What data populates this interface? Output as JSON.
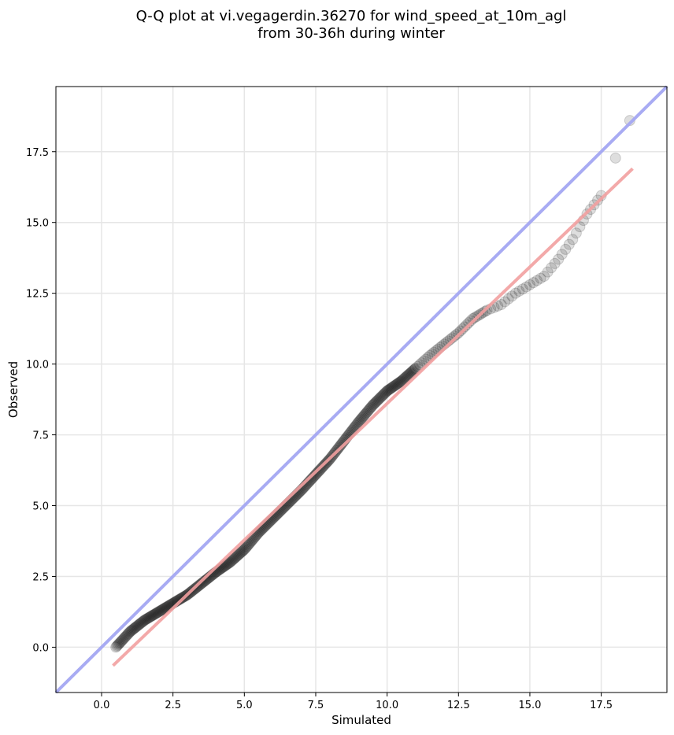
{
  "chart_data": {
    "type": "scatter",
    "title_line1": "Q-Q plot at vi.vegagerdin.36270 for wind_speed_at_10m_agl",
    "title_line2": "from 30-36h during winter",
    "xlabel": "Simulated",
    "ylabel": "Observed",
    "xlim": [
      -1.6,
      19.8
    ],
    "ylim": [
      -1.6,
      19.8
    ],
    "xticks": [
      0.0,
      2.5,
      5.0,
      7.5,
      10.0,
      12.5,
      15.0,
      17.5
    ],
    "xtick_labels": [
      "0.0",
      "2.5",
      "5.0",
      "7.5",
      "10.0",
      "12.5",
      "15.0",
      "17.5"
    ],
    "yticks": [
      0.0,
      2.5,
      5.0,
      7.5,
      10.0,
      12.5,
      15.0,
      17.5
    ],
    "ytick_labels": [
      "0.0",
      "2.5",
      "5.0",
      "7.5",
      "10.0",
      "12.5",
      "15.0",
      "17.5"
    ],
    "grid": true,
    "identity_line": {
      "from": [
        -1.6,
        -1.6
      ],
      "to": [
        19.8,
        19.8
      ],
      "color": "#a3a6f2"
    },
    "fit_line": {
      "from": [
        0.4,
        -0.65
      ],
      "to": [
        18.6,
        16.9
      ],
      "color": "#f2a0a0"
    },
    "points_color": "#000000",
    "qq_curve": [
      [
        0.5,
        0.0
      ],
      [
        1.0,
        0.55
      ],
      [
        1.5,
        0.95
      ],
      [
        2.0,
        1.25
      ],
      [
        2.5,
        1.55
      ],
      [
        3.0,
        1.85
      ],
      [
        3.5,
        2.25
      ],
      [
        4.0,
        2.65
      ],
      [
        4.5,
        3.0
      ],
      [
        5.0,
        3.45
      ],
      [
        5.5,
        4.05
      ],
      [
        6.0,
        4.55
      ],
      [
        6.5,
        5.05
      ],
      [
        7.0,
        5.55
      ],
      [
        7.5,
        6.1
      ],
      [
        8.0,
        6.65
      ],
      [
        8.5,
        7.3
      ],
      [
        9.0,
        7.95
      ],
      [
        9.5,
        8.55
      ],
      [
        10.0,
        9.05
      ],
      [
        10.5,
        9.4
      ],
      [
        11.0,
        9.85
      ],
      [
        11.5,
        10.3
      ],
      [
        12.0,
        10.7
      ],
      [
        12.5,
        11.1
      ],
      [
        13.0,
        11.6
      ],
      [
        13.5,
        11.9
      ],
      [
        14.0,
        12.1
      ],
      [
        14.5,
        12.5
      ],
      [
        15.0,
        12.8
      ],
      [
        15.5,
        13.1
      ],
      [
        16.0,
        13.7
      ],
      [
        16.5,
        14.4
      ],
      [
        17.0,
        15.3
      ],
      [
        17.5,
        15.95
      ],
      [
        18.5,
        18.6
      ]
    ]
  }
}
